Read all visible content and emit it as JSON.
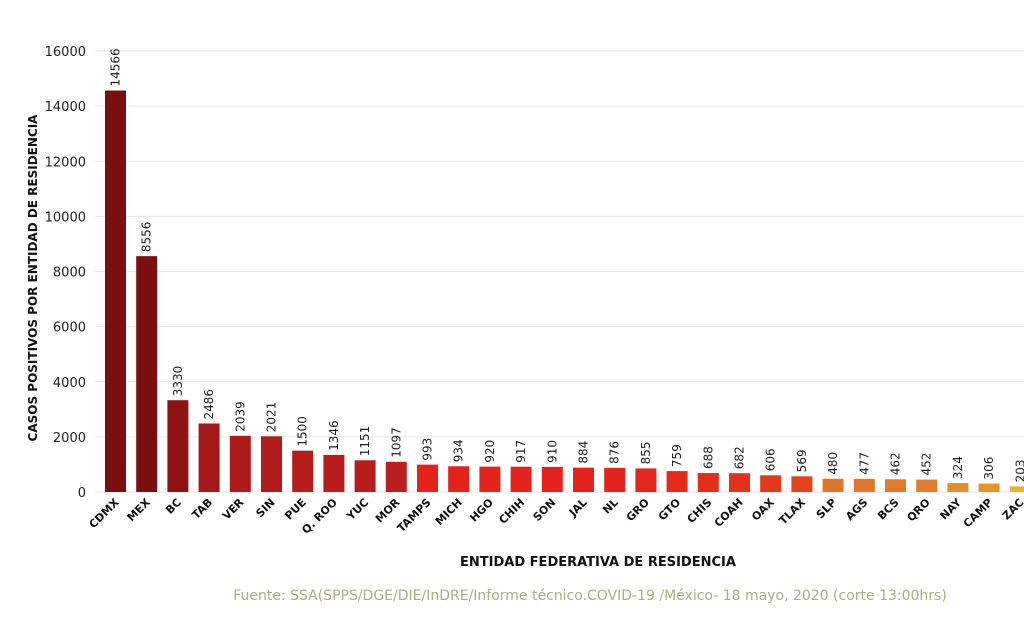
{
  "chart_data": {
    "type": "bar",
    "title": "",
    "ylabel": "CASOS POSITIVOS POR ENTIDAD DE RESIDENCIA",
    "xlabel": "ENTIDAD FEDERATIVA DE RESIDENCIA",
    "ylim": [
      0,
      16000
    ],
    "yticks": [
      0,
      2000,
      4000,
      6000,
      8000,
      10000,
      12000,
      14000,
      16000
    ],
    "grid": true,
    "categories": [
      "CDMX",
      "MEX",
      "BC",
      "TAB",
      "VER",
      "SIN",
      "PUE",
      "Q. ROO",
      "YUC",
      "MOR",
      "TAMPS",
      "MICH",
      "HGO",
      "CHIH",
      "SON",
      "JAL",
      "NL",
      "GRO",
      "GTO",
      "CHIS",
      "COAH",
      "OAX",
      "TLAX",
      "SLP",
      "AGS",
      "BCS",
      "QRO",
      "NAY",
      "CAMP",
      "ZAC"
    ],
    "values": [
      14566,
      8556,
      3330,
      2486,
      2039,
      2021,
      1500,
      1346,
      1151,
      1097,
      993,
      934,
      920,
      917,
      910,
      884,
      876,
      855,
      759,
      688,
      682,
      606,
      569,
      480,
      477,
      462,
      452,
      324,
      306,
      203
    ],
    "colors": [
      "#7a0f0f",
      "#7a0f0f",
      "#8e1414",
      "#a31818",
      "#ad1a1a",
      "#b01b1b",
      "#b51c1c",
      "#b71d1d",
      "#b81d1d",
      "#bb1e1e",
      "#e3231c",
      "#e3231c",
      "#e3231c",
      "#e3231c",
      "#e3231c",
      "#e3231c",
      "#e3231c",
      "#e3261c",
      "#e32a1c",
      "#e22f1c",
      "#e2321c",
      "#e2391c",
      "#e2421c",
      "#e0752c",
      "#e0772c",
      "#e17a2c",
      "#e17d2c",
      "#e48d2a",
      "#e69628",
      "#eab32a"
    ]
  },
  "source_text": "Fuente: SSA(SPPS/DGE/DIE/InDRE/Informe técnico.COVID-19 /México- 18 mayo, 2020 (corte 13:00hrs)"
}
